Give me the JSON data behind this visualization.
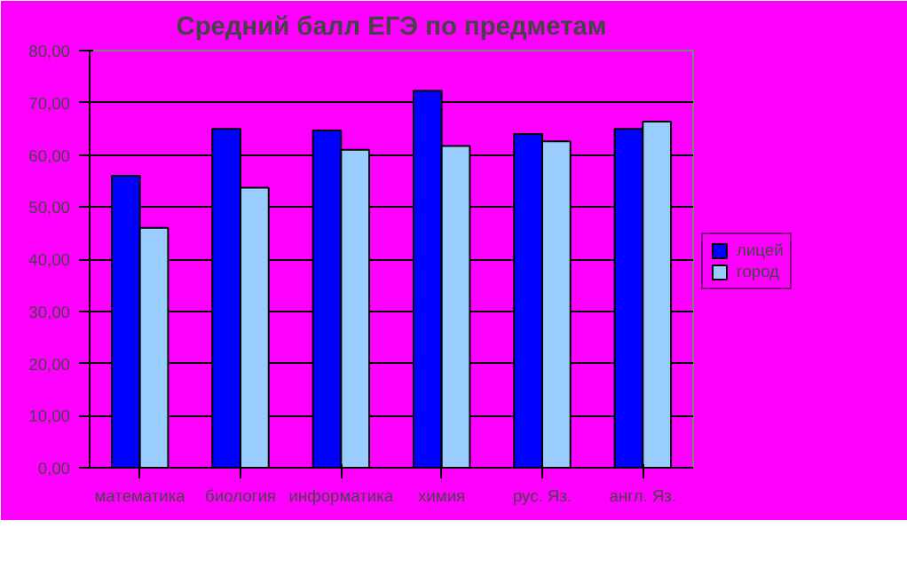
{
  "chart_data": {
    "type": "bar",
    "title": "Средний балл ЕГЭ по предметам",
    "categories": [
      "математика",
      "биология",
      "информатика",
      "химия",
      "рус. Яз.",
      "англ. Яз."
    ],
    "series": [
      {
        "name": "лицей",
        "color": "#0000ff",
        "values": [
          56,
          65,
          64.7,
          72.3,
          64,
          65
        ]
      },
      {
        "name": "город",
        "color": "#99ccff",
        "values": [
          46,
          53.7,
          61,
          61.7,
          62.6,
          66.4
        ]
      }
    ],
    "ylim": [
      0,
      80
    ],
    "yticks": [
      {
        "value": 0,
        "label": "0,00"
      },
      {
        "value": 10,
        "label": "10,00"
      },
      {
        "value": 20,
        "label": "20,00"
      },
      {
        "value": 30,
        "label": "30,00"
      },
      {
        "value": 40,
        "label": "40,00"
      },
      {
        "value": 50,
        "label": "50,00"
      },
      {
        "value": 60,
        "label": "60,00"
      },
      {
        "value": 70,
        "label": "70,00"
      },
      {
        "value": 80,
        "label": "80,00"
      }
    ],
    "grid": "y",
    "legend": "right"
  }
}
